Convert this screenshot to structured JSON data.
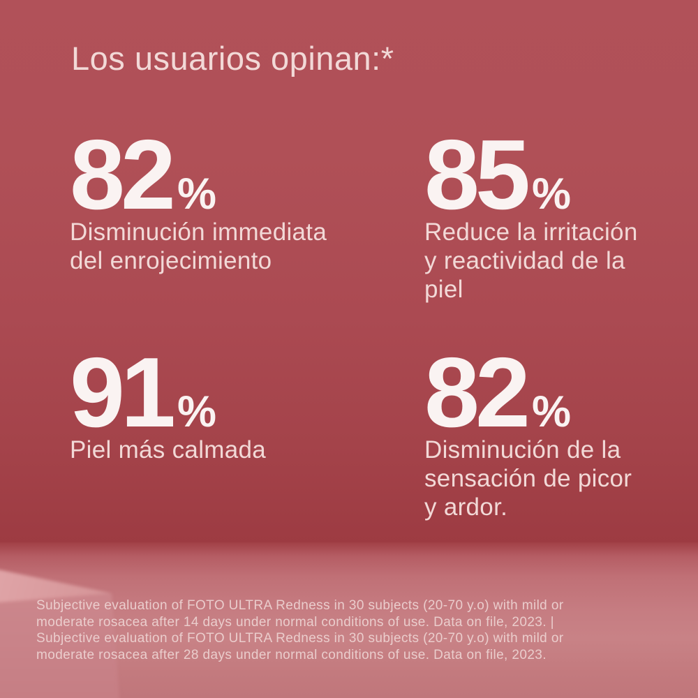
{
  "header": {
    "title": "Los usuarios opinan:*"
  },
  "stats": [
    {
      "value": "82",
      "unit": "%",
      "label": "Disminución immediata del enrojecimiento",
      "lines": [
        "Disminución immediata",
        "del enrojecimiento"
      ]
    },
    {
      "value": "85",
      "unit": "%",
      "label": "Reduce la irritación y reactividad de la piel",
      "lines": [
        "Reduce la irritación",
        "y reactividad de la",
        "piel"
      ]
    },
    {
      "value": "91",
      "unit": "%",
      "label": "Piel más calmada",
      "lines": [
        "Piel más calmada"
      ]
    },
    {
      "value": "82",
      "unit": "%",
      "label": "Disminución de la sensación de picor y ardor.",
      "lines": [
        "Disminución de la",
        "sensación de picor",
        "y ardor."
      ]
    }
  ],
  "footnote": {
    "text": "Subjective evaluation of FOTO ULTRA Redness in 30 subjects (20-70 y.o) with mild or moderate rosacea after 14 days under normal conditions of use. Data on file, 2023. | Subjective evaluation of FOTO ULTRA Redness in 30 subjects (20-70 y.o) with mild or moderate rosacea after 28 days under normal conditions of use. Data on file, 2023.",
    "lines": [
      "Subjective evaluation of FOTO ULTRA Redness in 30 subjects (20-70 y.o) with mild or",
      "moderate rosacea after 14 days under normal conditions of use. Data on file, 2023. |",
      "Subjective evaluation of FOTO ULTRA Redness in 30 subjects (20-70 y.o) with mild or",
      "moderate rosacea after 28 days under normal conditions of use. Data on file, 2023."
    ]
  },
  "colors": {
    "background_top": "#b15159",
    "background_horizon": "#9d3b42",
    "floor": "#c67d82",
    "floor_bottom": "#c0767b",
    "pedestal_top_face": "#d7989b",
    "pedestal_front_face": "#c98389",
    "title_text": "#f2d9d7",
    "stat_number": "#faf3f2",
    "stat_description": "#f2d9d7",
    "footnote_text": "#eed4d3"
  }
}
